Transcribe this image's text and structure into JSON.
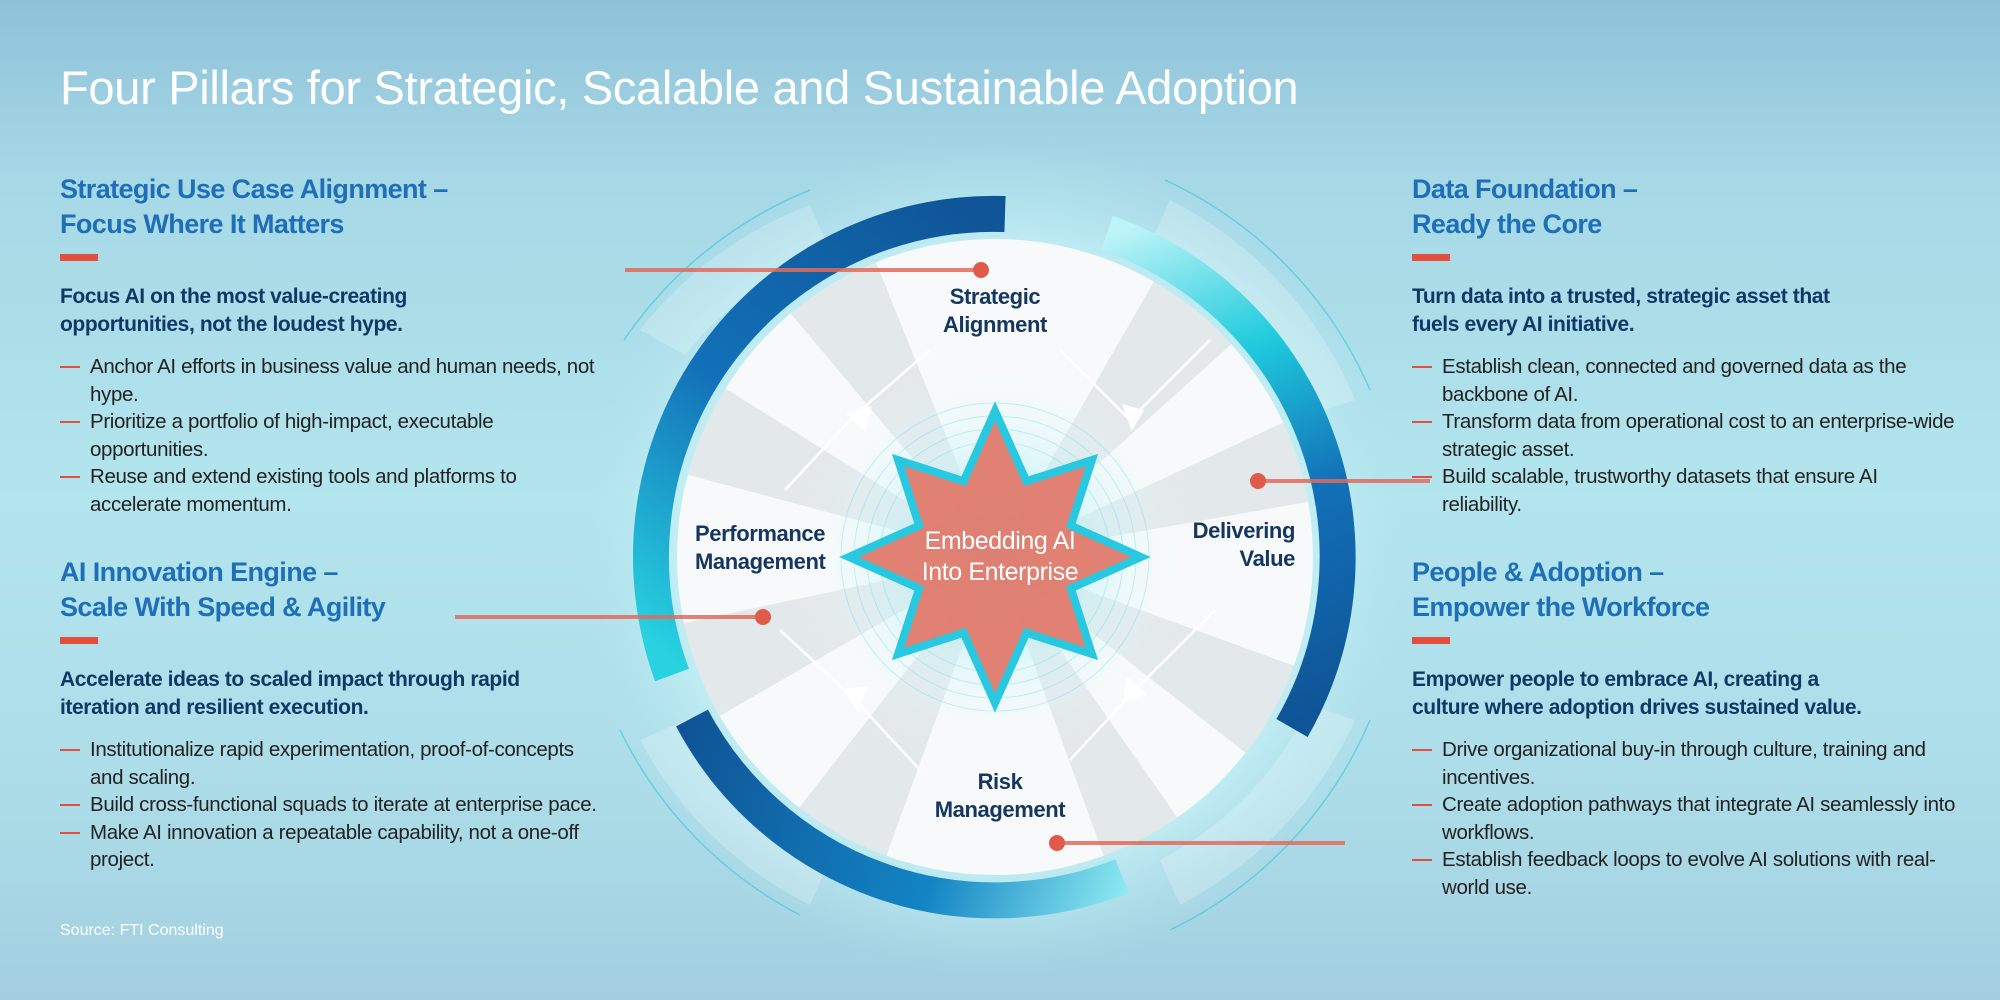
{
  "title": "Four Pillars for Strategic, Scalable and Sustainable Adoption",
  "pillars": [
    {
      "heading_line1": "Strategic Use Case Alignment –",
      "heading_line2": "Focus Where It Matters",
      "subhead_line1": "Focus AI on the most value-creating",
      "subhead_line2": "opportunities, not the loudest hype.",
      "bullets": [
        "Anchor AI efforts in business value and human needs, not hype.",
        "Prioritize a portfolio of high-impact, executable opportunities.",
        "Reuse and extend existing tools and platforms to accelerate momentum."
      ]
    },
    {
      "heading_line1": "AI Innovation Engine –",
      "heading_line2": "Scale With Speed & Agility",
      "subhead_line1": "Accelerate ideas to scaled impact through rapid",
      "subhead_line2": "iteration and resilient execution.",
      "bullets": [
        "Institutionalize rapid experimentation, proof-of-concepts and scaling.",
        "Build cross-functional squads to iterate at enterprise pace.",
        "Make AI innovation a repeatable capability, not a one-off project."
      ]
    },
    {
      "heading_line1": "Data Foundation –",
      "heading_line2": "Ready the Core",
      "subhead_line1": "Turn data into a trusted, strategic asset that",
      "subhead_line2": "fuels every AI initiative.",
      "bullets": [
        "Establish clean, connected and governed data as the backbone of AI.",
        "Transform data from operational cost to an enterprise-wide strategic asset.",
        "Build scalable, trustworthy datasets that ensure AI reliability."
      ]
    },
    {
      "heading_line1": "People & Adoption –",
      "heading_line2": "Empower the Workforce",
      "subhead_line1": "Empower people to embrace AI, creating a",
      "subhead_line2": "culture where adoption drives sustained value.",
      "bullets": [
        "Drive organizational buy-in through culture, training and incentives.",
        "Create adoption pathways that integrate AI seamlessly into workflows.",
        "Establish feedback loops to evolve AI solutions with real-world use."
      ]
    }
  ],
  "wheel": {
    "center_line1": "Embedding AI",
    "center_line2": "Into Enterprise",
    "segments": [
      {
        "line1": "Strategic",
        "line2": "Alignment"
      },
      {
        "line1": "Delivering",
        "line2": "Value"
      },
      {
        "line1": "Risk",
        "line2": "Management"
      },
      {
        "line1": "Performance",
        "line2": "Management"
      }
    ]
  },
  "source": "Source: FTI Consulting",
  "colors": {
    "heading": "#1f6fb8",
    "subhead": "#0f3866",
    "accent_red": "#e24f3d",
    "ring_dark": "#0f5ea3",
    "ring_cyan": "#1fcbdc",
    "star_fill": "#e07a6c"
  }
}
